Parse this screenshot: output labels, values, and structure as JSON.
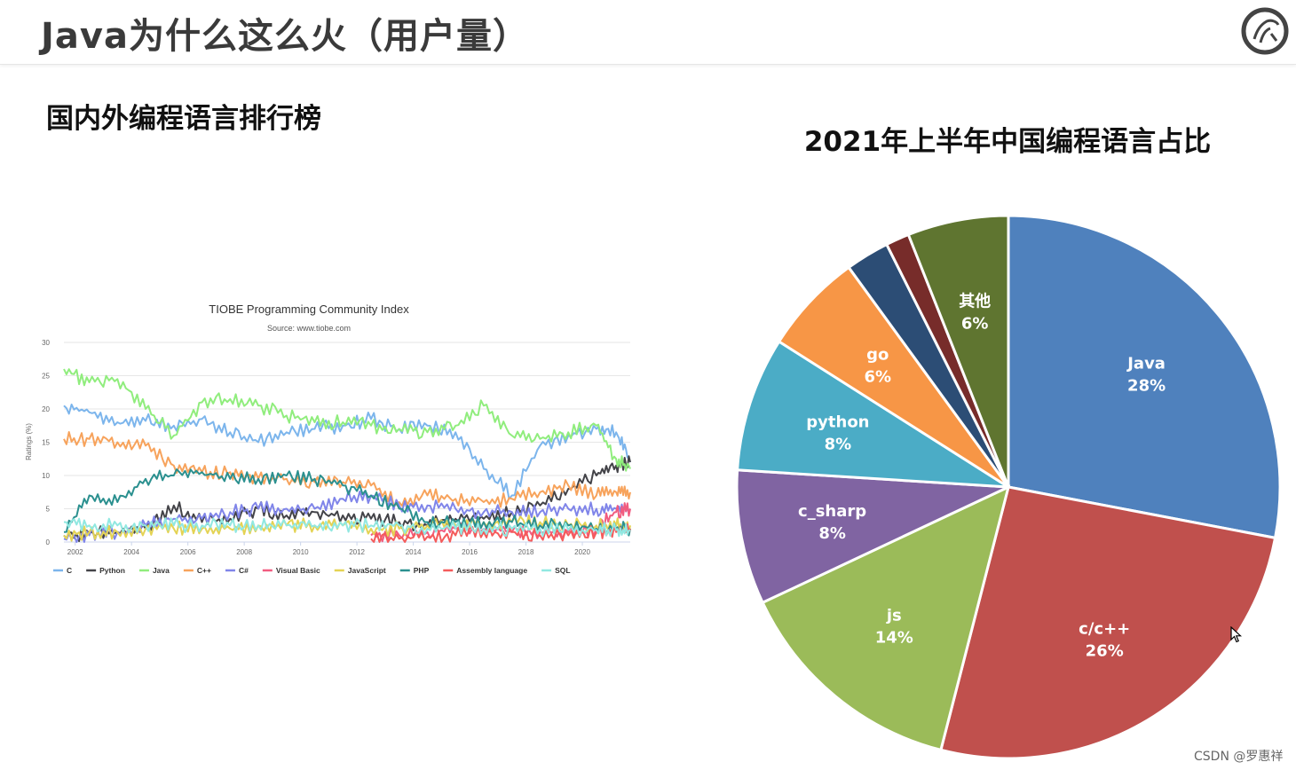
{
  "slide": {
    "title": "Java为什么这么火（用户量）",
    "section_heading": "国内外编程语言排行榜",
    "watermark": "CSDN @罗惠祥"
  },
  "logo": {
    "icon": "circular-logo-icon"
  },
  "chart_data": [
    {
      "type": "line",
      "title": "TIOBE Programming Community Index",
      "subtitle": "Source: www.tiobe.com",
      "xlabel": "",
      "ylabel": "Ratings (%)",
      "xlim": [
        2001.6,
        2021.7
      ],
      "ylim": [
        0,
        30
      ],
      "x_ticks": [
        "2002",
        "2004",
        "2006",
        "2008",
        "2010",
        "2012",
        "2014",
        "2016",
        "2018",
        "2020"
      ],
      "y_ticks": [
        "0",
        "5",
        "10",
        "15",
        "20",
        "25",
        "30"
      ],
      "grid": true,
      "legend": "bottom",
      "x": [
        2001.6,
        2002.5,
        2003.5,
        2004.5,
        2005.5,
        2006.5,
        2007.5,
        2008.5,
        2009.5,
        2010.5,
        2011.5,
        2012.5,
        2013.5,
        2014.5,
        2015.5,
        2016.5,
        2017.5,
        2018.5,
        2019.5,
        2020.5,
        2021.2,
        2021.7
      ],
      "series": [
        {
          "name": "C",
          "color": "#7cb5ec",
          "values": [
            20.5,
            19.5,
            18,
            18.2,
            17.5,
            18.5,
            16.5,
            15,
            16.5,
            17,
            17.5,
            18.5,
            17,
            17.5,
            16.5,
            11,
            7,
            14.5,
            16,
            17,
            16.5,
            12
          ]
        },
        {
          "name": "Python",
          "color": "#434348",
          "values": [
            1,
            1.3,
            1.5,
            2,
            5.5,
            3,
            3.5,
            5,
            4,
            4.5,
            4,
            3.5,
            3,
            2.5,
            3.5,
            3.5,
            4.5,
            5.5,
            8,
            10,
            11.5,
            12
          ]
        },
        {
          "name": "Java",
          "color": "#90ed7d",
          "values": [
            26,
            24,
            24.5,
            20,
            16,
            21,
            21.5,
            20.5,
            19,
            18,
            18,
            17.5,
            17,
            16.5,
            17.5,
            20.5,
            16,
            15.5,
            16.5,
            17.5,
            12.5,
            11
          ]
        },
        {
          "name": "C++",
          "color": "#f7a35c",
          "values": [
            15.5,
            15.5,
            15,
            14.5,
            11.5,
            10.5,
            10.5,
            9.5,
            9.5,
            9,
            9,
            8.5,
            6,
            7,
            6.5,
            6,
            6.5,
            7.5,
            8.5,
            7,
            7.5,
            7.5
          ]
        },
        {
          "name": "C#",
          "color": "#8085e9",
          "values": [
            0.5,
            1,
            1.5,
            2.5,
            3.5,
            3.5,
            4.5,
            5,
            5,
            5,
            6.5,
            7,
            5.5,
            5.5,
            5,
            4.5,
            4.5,
            4.5,
            5,
            5,
            5,
            5
          ]
        },
        {
          "name": "Visual Basic",
          "color": "#f15c80",
          "values": [
            null,
            null,
            null,
            null,
            null,
            null,
            null,
            null,
            null,
            null,
            null,
            1,
            1,
            1.5,
            2,
            2,
            1.5,
            1.5,
            1.5,
            2,
            4.5,
            5
          ]
        },
        {
          "name": "JavaScript",
          "color": "#e4d354",
          "values": [
            1,
            1.5,
            1.5,
            2,
            2,
            2,
            2,
            2.5,
            2.5,
            2.5,
            2.5,
            2,
            2,
            2.5,
            2.5,
            3,
            3,
            3,
            2.5,
            2.5,
            2.5,
            2.5
          ]
        },
        {
          "name": "PHP",
          "color": "#2b908f",
          "values": [
            1.5,
            7,
            6,
            9.5,
            10,
            10.5,
            9.5,
            9.5,
            10,
            9.5,
            8.5,
            7,
            5,
            3,
            3,
            3,
            3,
            2.5,
            2.5,
            2,
            2,
            2
          ]
        },
        {
          "name": "Assembly language",
          "color": "#f45b5b",
          "values": [
            null,
            null,
            null,
            null,
            null,
            null,
            null,
            null,
            null,
            null,
            null,
            0.5,
            0.5,
            0.8,
            1,
            1.5,
            1.5,
            1,
            1,
            1.5,
            1.5,
            2
          ]
        },
        {
          "name": "SQL",
          "color": "#91e8e1",
          "values": [
            3,
            2.5,
            2.5,
            2.5,
            2.5,
            2.5,
            2.5,
            2.5,
            2.5,
            2.5,
            2.5,
            2.5,
            2.5,
            2,
            2,
            2,
            2,
            2,
            1.8,
            1.8,
            1.8,
            1.8
          ]
        }
      ]
    },
    {
      "type": "pie",
      "title": "2021年上半年中国编程语言占比",
      "start_angle_deg": 0,
      "slices": [
        {
          "label": "Java",
          "percent_label": "28%",
          "value": 28,
          "color": "#4f81bd"
        },
        {
          "label": "c/c++",
          "percent_label": "26%",
          "value": 26,
          "color": "#c0504d"
        },
        {
          "label": "js",
          "percent_label": "14%",
          "value": 14,
          "color": "#9bbb59"
        },
        {
          "label": "c_sharp",
          "percent_label": "8%",
          "value": 8,
          "color": "#8064a2"
        },
        {
          "label": "python",
          "percent_label": "8%",
          "value": 8,
          "color": "#4bacc6"
        },
        {
          "label": "go",
          "percent_label": "6%",
          "value": 6,
          "color": "#f79646"
        },
        {
          "label": "",
          "percent_label": "",
          "value": 2.6,
          "color": "#2c4d75"
        },
        {
          "label": "",
          "percent_label": "",
          "value": 1.4,
          "color": "#772c2a"
        },
        {
          "label": "其他",
          "percent_label": "6%",
          "value": 6,
          "color": "#5f7530"
        }
      ]
    }
  ]
}
